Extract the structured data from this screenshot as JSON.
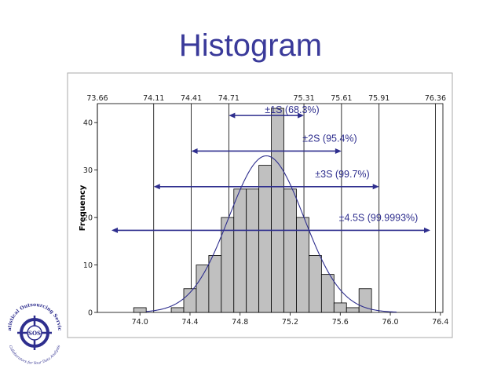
{
  "slide": {
    "title": "Histogram"
  },
  "chart_data": {
    "type": "bar",
    "title": "Histogram",
    "xlabel": "",
    "ylabel": "Frequency",
    "xlim": [
      73.66,
      76.42
    ],
    "ylim": [
      0,
      44
    ],
    "x_ticks": [
      74.0,
      74.4,
      74.8,
      75.2,
      75.6,
      76.0,
      76.4
    ],
    "x_tick_labels": [
      "74.0",
      "74.4",
      "74.8",
      "75.2",
      "75.6",
      "76.0",
      "76.4"
    ],
    "y_ticks": [
      0,
      10,
      20,
      30,
      40
    ],
    "y_tick_labels": [
      "0",
      "10",
      "20",
      "30",
      "40"
    ],
    "bin_width": 0.1,
    "bins": [
      {
        "center": 74.0,
        "count": 1
      },
      {
        "center": 74.3,
        "count": 1
      },
      {
        "center": 74.4,
        "count": 5
      },
      {
        "center": 74.5,
        "count": 10
      },
      {
        "center": 74.6,
        "count": 12
      },
      {
        "center": 74.7,
        "count": 20
      },
      {
        "center": 74.8,
        "count": 26
      },
      {
        "center": 74.9,
        "count": 26
      },
      {
        "center": 75.0,
        "count": 31
      },
      {
        "center": 75.1,
        "count": 43
      },
      {
        "center": 75.2,
        "count": 26
      },
      {
        "center": 75.3,
        "count": 20
      },
      {
        "center": 75.4,
        "count": 12
      },
      {
        "center": 75.5,
        "count": 8
      },
      {
        "center": 75.6,
        "count": 2
      },
      {
        "center": 75.7,
        "count": 1
      },
      {
        "center": 75.8,
        "count": 5
      }
    ],
    "normal_fit": {
      "mean": 75.01,
      "sd": 0.3,
      "peak": 33
    },
    "reference_lines": [
      73.66,
      74.11,
      74.41,
      74.71,
      75.31,
      75.61,
      75.91,
      76.36
    ],
    "reference_labels": [
      "73.66",
      "74.11",
      "74.41",
      "74.71",
      "75.31",
      "75.61",
      "75.91",
      "76.36"
    ],
    "sigma_bands": [
      {
        "label": "±1S (68.3%)",
        "from": 74.71,
        "to": 75.31,
        "y": 41.5
      },
      {
        "label": "±2S (95.4%)",
        "from": 74.41,
        "to": 75.61,
        "y": 34
      },
      {
        "label": "±3S (99.7%)",
        "from": 74.11,
        "to": 75.91,
        "y": 26.5
      },
      {
        "label": "±4.5S (99.9993%)",
        "from": 73.66,
        "to": 76.36,
        "y": 17.3
      }
    ]
  },
  "logo": {
    "name": "Statistical Outsourcing Services",
    "initials": "SOS",
    "tagline": "Collaborators for Your Data Analysis"
  },
  "colors": {
    "title": "#3a3a9a",
    "line": "#2e2e8e",
    "bar_fill": "#c0c0c0",
    "bar_stroke": "#000000",
    "plot_bg": "#ffffff",
    "frame_bg": "#ffffff"
  }
}
